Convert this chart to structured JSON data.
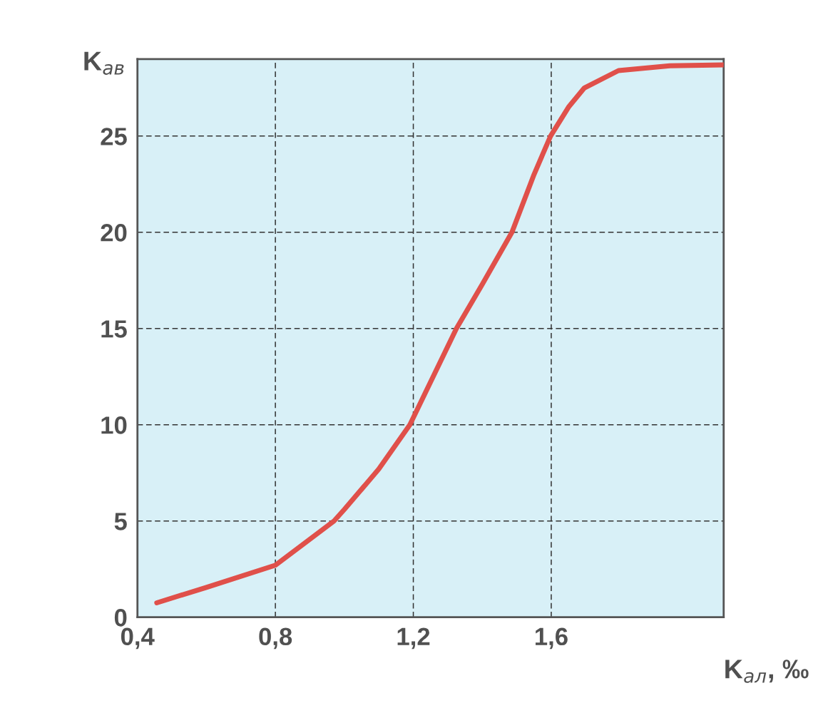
{
  "chart_data": {
    "type": "line",
    "xlabel": "K$_{ал}$, ‰",
    "ylabel": "K$_{ав}$",
    "x": [
      0.456,
      0.6,
      0.8,
      0.97,
      1.0,
      1.1,
      1.19,
      1.325,
      1.4,
      1.486,
      1.55,
      1.598,
      1.65,
      1.696,
      1.795,
      1.944,
      2.1
    ],
    "series": [
      {
        "color": "#e0504a",
        "values": [
          0.75,
          1.55,
          2.7,
          5,
          5.6,
          7.7,
          10,
          15,
          17.3,
          20,
          23,
          25,
          26.5,
          27.5,
          28.4,
          28.65,
          28.7
        ]
      }
    ],
    "xlim": [
      0.4,
      2.1
    ],
    "xticks": [
      {
        "value": 0.4,
        "label": "0,4"
      },
      {
        "value": 0.8,
        "label": "0,8"
      },
      {
        "value": 1.2,
        "label": "1,2"
      },
      {
        "value": 1.6,
        "label": "1,6"
      }
    ],
    "ylim": [
      0,
      29
    ],
    "yticks": [
      0,
      5,
      10,
      15,
      20,
      25
    ],
    "grid": true,
    "marker": "none",
    "line_style": "solid"
  }
}
